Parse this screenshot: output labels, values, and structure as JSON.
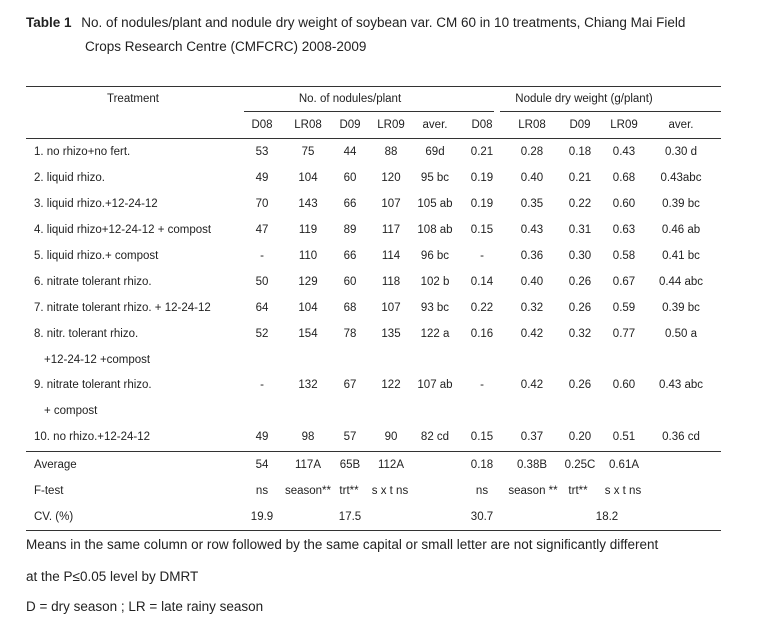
{
  "caption": {
    "label": "Table 1",
    "text_line1": "No. of nodules/plant and nodule dry weight of soybean var. CM 60 in 10 treatments,  Chiang Mai Field",
    "text_line2": "Crops Research Centre (CMFCRC) 2008-2009"
  },
  "headers": {
    "treatment": "Treatment",
    "group_nodules": "No. of nodules/plant",
    "group_weight": "Nodule dry weight  (g/plant)",
    "sub": [
      "D08",
      "LR08",
      "D09",
      "LR09",
      "aver.",
      "D08",
      "LR08",
      "D09",
      "LR09",
      "aver."
    ]
  },
  "rows": [
    {
      "treatment": "1. no rhizo+no fert.",
      "cont": "",
      "values": [
        "53",
        "75",
        "44",
        "88",
        "69d",
        "0.21",
        "0.28",
        "0.18",
        "0.43",
        "0.30 d"
      ]
    },
    {
      "treatment": "2. liquid rhizo.",
      "cont": "",
      "values": [
        "49",
        "104",
        "60",
        "120",
        "95 bc",
        "0.19",
        "0.40",
        "0.21",
        "0.68",
        "0.43abc"
      ]
    },
    {
      "treatment": "3. liquid rhizo.+12-24-12",
      "cont": "",
      "values": [
        "70",
        "143",
        "66",
        "107",
        "105 ab",
        "0.19",
        "0.35",
        "0.22",
        "0.60",
        "0.39 bc"
      ]
    },
    {
      "treatment": "4. liquid rhizo+12-24-12 + compost",
      "cont": "",
      "values": [
        "47",
        "119",
        "89",
        "117",
        "108 ab",
        "0.15",
        "0.43",
        "0.31",
        "0.63",
        "0.46 ab"
      ]
    },
    {
      "treatment": "5. liquid rhizo.+ compost",
      "cont": "",
      "values": [
        "-",
        "110",
        "66",
        "114",
        "96 bc",
        "-",
        "0.36",
        "0.30",
        "0.58",
        "0.41 bc"
      ]
    },
    {
      "treatment": "6. nitrate tolerant rhizo.",
      "cont": "",
      "values": [
        "50",
        "129",
        "60",
        "118",
        "102 b",
        "0.14",
        "0.40",
        "0.26",
        "0.67",
        "0.44 abc"
      ]
    },
    {
      "treatment": "7. nitrate tolerant rhizo. + 12-24-12",
      "cont": "",
      "values": [
        "64",
        "104",
        "68",
        "107",
        "93 bc",
        "0.22",
        "0.32",
        "0.26",
        "0.59",
        "0.39 bc"
      ]
    },
    {
      "treatment": "8. nitr. tolerant rhizo.",
      "cont": "+12-24-12 +compost",
      "values": [
        "52",
        "154",
        "78",
        "135",
        "122 a",
        "0.16",
        "0.42",
        "0.32",
        "0.77",
        "0.50 a"
      ]
    },
    {
      "treatment": "9. nitrate tolerant rhizo.",
      "cont": "+ compost",
      "values": [
        "-",
        "132",
        "67",
        "122",
        "107 ab",
        "-",
        "0.42",
        "0.26",
        "0.60",
        "0.43 abc"
      ]
    },
    {
      "treatment": "10. no rhizo.+12-24-12",
      "cont": "",
      "values": [
        "49",
        "98",
        "57",
        "90",
        "82 cd",
        "0.15",
        "0.37",
        "0.20",
        "0.51",
        "0.36 cd"
      ]
    }
  ],
  "average": {
    "label": "Average",
    "d08": "54",
    "lr08": "117A",
    "d09": "65B",
    "lr09": "112A",
    "d08w": "0.18",
    "lr08w": "0.38B",
    "d09w": "0.25C",
    "lr09w": "0.61A"
  },
  "ftest": {
    "label": "F-test",
    "d08": "ns",
    "season": "season**",
    "trt": "trt**",
    "sxt": "s x t  ns",
    "d08w": "ns",
    "season_w": "season **",
    "trt_w": "trt**",
    "sxt_w": "s x t  ns"
  },
  "cv": {
    "label": "CV. (%)",
    "d08": "19.9",
    "mid": "17.5",
    "d08w": "30.7",
    "mid_w": "18.2"
  },
  "notes": [
    "Means in the same column or row followed by the same capital or small letter are not significantly different",
    "at the P≤0.05 level by DMRT",
    "D = dry season ; LR = late rainy season"
  ]
}
